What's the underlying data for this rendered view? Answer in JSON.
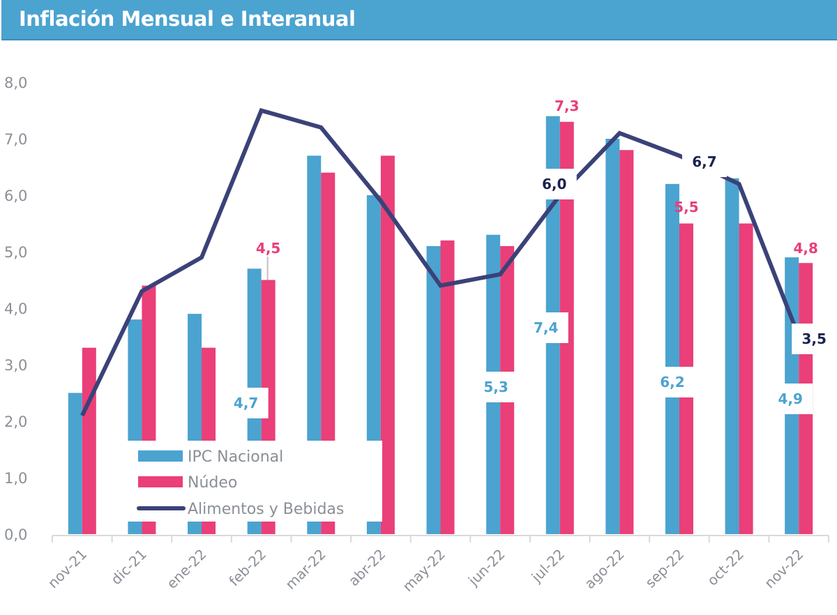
{
  "header": {
    "title": "Inflación Mensual e Interanual"
  },
  "colors": {
    "ipc": "#4ba3d0",
    "nucleo": "#ea3f79",
    "alimentos": "#3a4278",
    "axis_text": "#8a8f96",
    "header_bg": "#4ba3d0"
  },
  "chart_data": {
    "type": "bar",
    "title": "Inflación Mensual e Interanual",
    "xlabel": "",
    "ylabel": "",
    "ylim": [
      0,
      8
    ],
    "yticks": [
      "0,0",
      "1,0",
      "2,0",
      "3,0",
      "4,0",
      "5,0",
      "6,0",
      "7,0",
      "8,0"
    ],
    "grid": false,
    "legend_position": "bottom-left",
    "categories": [
      "nov-21",
      "dic-21",
      "ene-22",
      "feb-22",
      "mar-22",
      "abr-22",
      "may-22",
      "jun-22",
      "jul-22",
      "ago-22",
      "sep-22",
      "oct-22",
      "nov-22"
    ],
    "series": [
      {
        "name": "IPC  Nacional",
        "kind": "bar",
        "values": [
          2.5,
          3.8,
          3.9,
          4.7,
          6.7,
          6.0,
          5.1,
          5.3,
          7.4,
          7.0,
          6.2,
          6.3,
          4.9
        ]
      },
      {
        "name": "Núdeo",
        "kind": "bar",
        "values": [
          3.3,
          4.4,
          3.3,
          4.5,
          6.4,
          6.7,
          5.2,
          5.1,
          7.3,
          6.8,
          5.5,
          5.5,
          4.8
        ]
      },
      {
        "name": "Alimentos y Bebidas",
        "kind": "line",
        "values": [
          2.1,
          4.3,
          4.9,
          7.5,
          7.2,
          5.9,
          4.4,
          4.6,
          6.0,
          7.1,
          6.7,
          6.2,
          3.5
        ]
      }
    ],
    "data_labels": [
      {
        "series": 0,
        "index": 3,
        "text": "4,7"
      },
      {
        "series": 1,
        "index": 3,
        "text": "4,5"
      },
      {
        "series": 0,
        "index": 7,
        "text": "5,3"
      },
      {
        "series": 0,
        "index": 8,
        "text": "7,4"
      },
      {
        "series": 1,
        "index": 8,
        "text": "7,3"
      },
      {
        "series": 2,
        "index": 8,
        "text": "6,0"
      },
      {
        "series": 0,
        "index": 10,
        "text": "6,2"
      },
      {
        "series": 1,
        "index": 10,
        "text": "5,5"
      },
      {
        "series": 2,
        "index": 10,
        "text": "6,7"
      },
      {
        "series": 0,
        "index": 12,
        "text": "4,9"
      },
      {
        "series": 1,
        "index": 12,
        "text": "4,8"
      },
      {
        "series": 2,
        "index": 12,
        "text": "3,5"
      }
    ]
  }
}
